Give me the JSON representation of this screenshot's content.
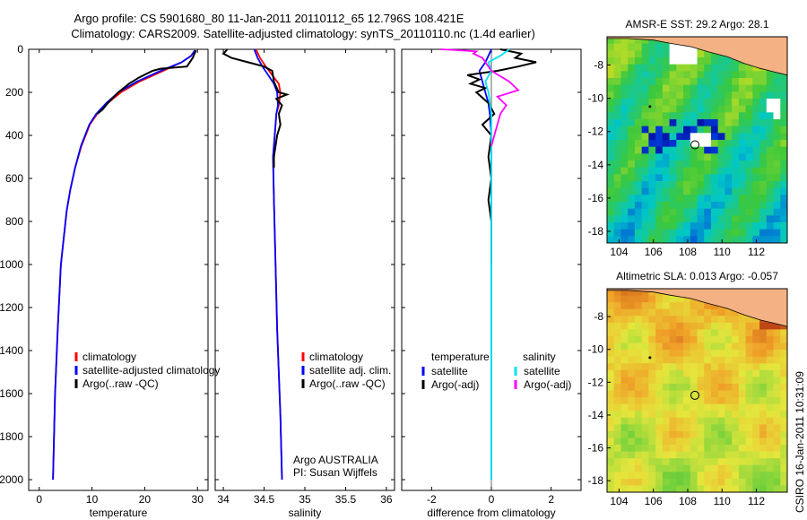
{
  "header": {
    "line1": "Argo profile: CS 5901680_80 11-Jan-2011 20110112_65 12.796S 108.421E",
    "line2": "Climatology: CARS2009. Satellite-adjusted climatology: synTS_20110110.nc (1.4d earlier)"
  },
  "colors": {
    "climatology": "#ff0000",
    "satellite": "#0000ff",
    "argo": "#000000",
    "sal_satellite": "#00e5ee",
    "sal_argo": "#ff00ff",
    "land": "#f4b183"
  },
  "chart_data": [
    {
      "type": "line",
      "panel": "temperature",
      "xlabel": "temperature",
      "ylabel": "",
      "xlim": [
        -2,
        32
      ],
      "ylim": [
        2050,
        0
      ],
      "y_inverted": true,
      "xticks": [
        "0",
        "10",
        "20",
        "30"
      ],
      "yticks": [
        "0",
        "200",
        "400",
        "600",
        "800",
        "1000",
        "1200",
        "1400",
        "1600",
        "1800",
        "2000"
      ],
      "legend": [
        "climatology",
        "satellite-adjusted climatology",
        "Argo(..raw -QC)"
      ],
      "series": [
        {
          "name": "climatology",
          "color": "#ff0000",
          "x": [
            29.5,
            28.8,
            27.0,
            23.5,
            19.0,
            15.5,
            13.0,
            11.0,
            9.6,
            8.0,
            6.8,
            5.9,
            5.2,
            4.1,
            3.5,
            3.0,
            2.6
          ],
          "y": [
            5,
            30,
            60,
            100,
            150,
            200,
            250,
            300,
            350,
            450,
            550,
            650,
            750,
            1000,
            1300,
            1600,
            2000
          ]
        },
        {
          "name": "satellite-adjusted climatology",
          "color": "#0000ff",
          "x": [
            29.5,
            28.8,
            27.0,
            23.0,
            18.5,
            15.0,
            12.7,
            10.8,
            9.5,
            7.9,
            6.8,
            5.9,
            5.2,
            4.1,
            3.5,
            3.0,
            2.6
          ],
          "y": [
            5,
            30,
            60,
            100,
            150,
            200,
            250,
            300,
            350,
            450,
            550,
            650,
            750,
            1000,
            1300,
            1600,
            2000
          ]
        },
        {
          "name": "Argo(..raw -QC)",
          "color": "#000000",
          "x": [
            29.7,
            29.1,
            28.0,
            23.0,
            21.5,
            19.0,
            17.0,
            15.0,
            13.0,
            12.0,
            11.0
          ],
          "y": [
            5,
            40,
            80,
            90,
            100,
            130,
            160,
            200,
            250,
            280,
            300
          ]
        }
      ]
    },
    {
      "type": "line",
      "panel": "salinity",
      "xlabel": "salinity",
      "ylabel": "",
      "xlim": [
        33.9,
        36.1
      ],
      "ylim": [
        2050,
        0
      ],
      "y_inverted": true,
      "xticks": [
        "34",
        "34.5",
        "35",
        "35.5",
        "36"
      ],
      "legend": [
        "climatology",
        "satellite adj. clim.",
        "Argo(..raw -QC)"
      ],
      "annotation": [
        "Argo AUSTRALIA",
        "PI: Susan Wijffels"
      ],
      "series": [
        {
          "name": "climatology",
          "color": "#ff0000",
          "x": [
            34.4,
            34.45,
            34.52,
            34.6,
            34.68,
            34.7,
            34.68,
            34.65,
            34.63,
            34.61,
            34.62,
            34.64,
            34.66,
            34.7,
            34.72
          ],
          "y": [
            0,
            40,
            80,
            120,
            160,
            200,
            260,
            300,
            400,
            500,
            700,
            1000,
            1300,
            1700,
            2000
          ]
        },
        {
          "name": "satellite adj. clim.",
          "color": "#0000ff",
          "x": [
            34.38,
            34.42,
            34.48,
            34.55,
            34.62,
            34.66,
            34.67,
            34.65,
            34.63,
            34.61,
            34.62,
            34.64,
            34.66,
            34.7,
            34.72
          ],
          "y": [
            0,
            40,
            80,
            120,
            160,
            200,
            260,
            300,
            400,
            500,
            700,
            1000,
            1300,
            1700,
            2000
          ]
        },
        {
          "name": "Argo(..raw -QC)",
          "color": "#000000",
          "x": [
            34.05,
            34.0,
            34.1,
            34.3,
            34.5,
            34.6,
            34.62,
            34.68,
            34.78,
            34.65,
            34.72,
            34.68,
            34.7,
            34.66,
            34.64,
            34.62,
            34.62
          ],
          "y": [
            0,
            20,
            40,
            60,
            80,
            100,
            150,
            200,
            210,
            230,
            260,
            300,
            350,
            400,
            450,
            500,
            550
          ]
        }
      ]
    },
    {
      "type": "line",
      "panel": "difference",
      "xlabel": "difference from climatology",
      "ylabel": "",
      "xlim": [
        -3,
        3
      ],
      "ylim": [
        2050,
        0
      ],
      "y_inverted": true,
      "xticks": [
        "-2",
        "0",
        "2"
      ],
      "legend_left": {
        "title": "temperature",
        "items": [
          "satellite",
          "Argo(-adj)"
        ]
      },
      "legend_right": {
        "title": "salinity",
        "items": [
          "satellite",
          "Argo(-adj)"
        ]
      },
      "series": [
        {
          "name": "temperature satellite",
          "color": "#0000ff",
          "x": [
            0.0,
            -0.1,
            -0.2,
            -0.4,
            -0.3,
            -0.2,
            -0.1,
            -0.05,
            0.0,
            0.0,
            0.0,
            0.0,
            0.0
          ],
          "y": [
            0,
            30,
            60,
            100,
            150,
            200,
            250,
            300,
            400,
            700,
            1000,
            1500,
            2000
          ]
        },
        {
          "name": "temperature Argo(-adj)",
          "color": "#000000",
          "x": [
            0.3,
            1.0,
            0.8,
            1.5,
            0.9,
            0.2,
            -0.8,
            -0.4,
            -0.7,
            -0.2,
            -0.5,
            -0.1,
            0.1,
            -0.3,
            0.0,
            -0.1,
            0.0,
            -0.1,
            0.0,
            0.0
          ],
          "y": [
            0,
            20,
            40,
            60,
            80,
            100,
            120,
            140,
            160,
            180,
            200,
            250,
            300,
            350,
            400,
            500,
            600,
            700,
            800,
            1000
          ]
        },
        {
          "name": "salinity satellite",
          "color": "#00e5ee",
          "x": [
            0.6,
            0.3,
            -0.1,
            0.0,
            -0.2,
            -0.1,
            0.0,
            0.0,
            0.0,
            0.0
          ],
          "y": [
            0,
            30,
            60,
            100,
            150,
            200,
            300,
            500,
            1000,
            2000
          ]
        },
        {
          "name": "salinity Argo(-adj)",
          "color": "#ff00ff",
          "x": [
            -1.7,
            -1.0,
            -0.5,
            -0.6,
            -0.3,
            0.0,
            0.6,
            0.9,
            0.2,
            0.5,
            0.3,
            0.2,
            0.1,
            0.0
          ],
          "y": [
            0,
            5,
            10,
            20,
            40,
            100,
            150,
            190,
            220,
            260,
            300,
            350,
            400,
            450
          ]
        }
      ]
    },
    {
      "type": "heatmap",
      "panel": "sst-map",
      "title": "AMSR-E SST: 29.2  Argo: 28.1",
      "xlim": [
        103.3,
        113.8
      ],
      "ylim": [
        -18.7,
        -6.3
      ],
      "xticks": [
        "104",
        "106",
        "108",
        "110",
        "112"
      ],
      "yticks": [
        "-8",
        "-10",
        "-12",
        "-14",
        "-16",
        "-18"
      ],
      "marker": {
        "lon": 108.421,
        "lat": -12.796
      }
    },
    {
      "type": "heatmap",
      "panel": "sla-map",
      "title": "Altimetric SLA: 0.013  Argo: -0.057",
      "xlim": [
        103.3,
        113.8
      ],
      "ylim": [
        -18.7,
        -6.3
      ],
      "xticks": [
        "104",
        "106",
        "108",
        "110",
        "112"
      ],
      "yticks": [
        "-8",
        "-10",
        "-12",
        "-14",
        "-16",
        "-18"
      ],
      "marker": {
        "lon": 108.421,
        "lat": -12.796
      }
    }
  ],
  "footer": {
    "credit": "CSIRO 16-Jan-2011 10:31:09"
  }
}
